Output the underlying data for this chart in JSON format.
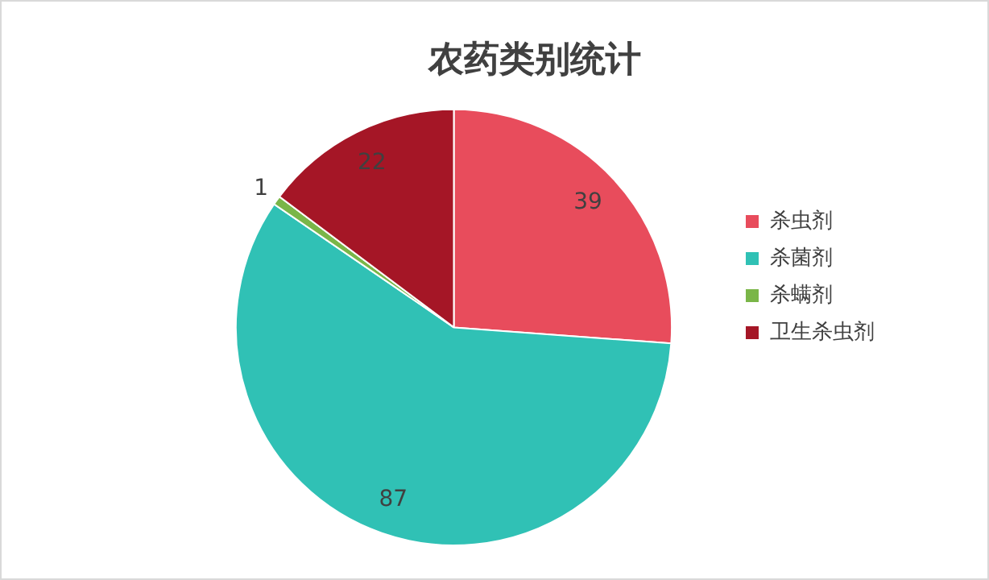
{
  "chart_data": {
    "type": "pie",
    "title": "农药类别统计",
    "categories": [
      "杀虫剂",
      "杀菌剂",
      "杀螨剂",
      "卫生杀虫剂"
    ],
    "values": [
      39,
      87,
      1,
      22
    ],
    "colors": [
      "#e84c5c",
      "#30c1b5",
      "#7ab648",
      "#a51626"
    ],
    "data_labels": true,
    "legend": "right"
  }
}
